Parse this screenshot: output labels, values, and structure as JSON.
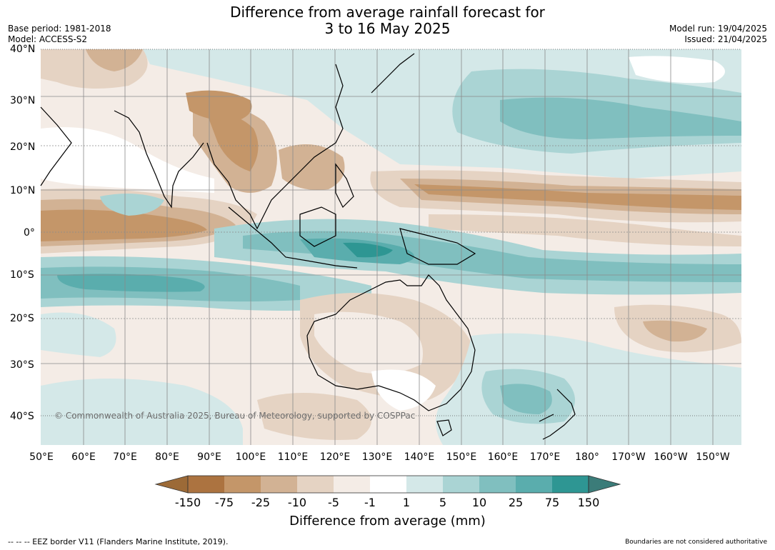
{
  "title": {
    "line1": "Difference from average rainfall forecast for",
    "line2": "3 to 16 May 2025"
  },
  "meta": {
    "base_period": "Base period: 1981-2018",
    "model": "Model: ACCESS-S2",
    "model_run": "Model run: 19/04/2025",
    "issued": "Issued: 21/04/2025"
  },
  "map": {
    "lat_labels": [
      "40°N",
      "30°N",
      "20°N",
      "10°N",
      "0°",
      "10°S",
      "20°S",
      "30°S",
      "40°S"
    ],
    "lon_labels": [
      "50°E",
      "60°E",
      "70°E",
      "80°E",
      "90°E",
      "100°E",
      "110°E",
      "120°E",
      "130°E",
      "140°E",
      "150°E",
      "160°E",
      "170°E",
      "180°",
      "170°W",
      "160°W",
      "150°W"
    ],
    "copyright": "© Commonwealth of Australia 2025, Bureau of Meteorology, supported by COSPPac",
    "colors": {
      "dry_extreme": "#9c6a37",
      "dry_150": "#ac7340",
      "dry_75": "#c49669",
      "dry_25": "#d2b294",
      "dry_10": "#e5d3c3",
      "dry_5": "#f4ece6",
      "neutral": "#ffffff",
      "wet_1": "#d4e8e8",
      "wet_5": "#aad4d4",
      "wet_10": "#80bfbf",
      "wet_25": "#5aadad",
      "wet_75": "#2e9693",
      "wet_extreme": "#3b7c79"
    }
  },
  "colorbar": {
    "title": "Difference from average (mm)",
    "ticks": [
      "-150",
      "-75",
      "-25",
      "-10",
      "-5",
      "-1",
      "1",
      "5",
      "10",
      "25",
      "75",
      "150"
    ]
  },
  "footer": {
    "eez_note": "--  --  -- EEZ border V11 (Flanders Marine Institute, 2019).",
    "boundary_note": "Boundaries are not considered authoritative"
  }
}
